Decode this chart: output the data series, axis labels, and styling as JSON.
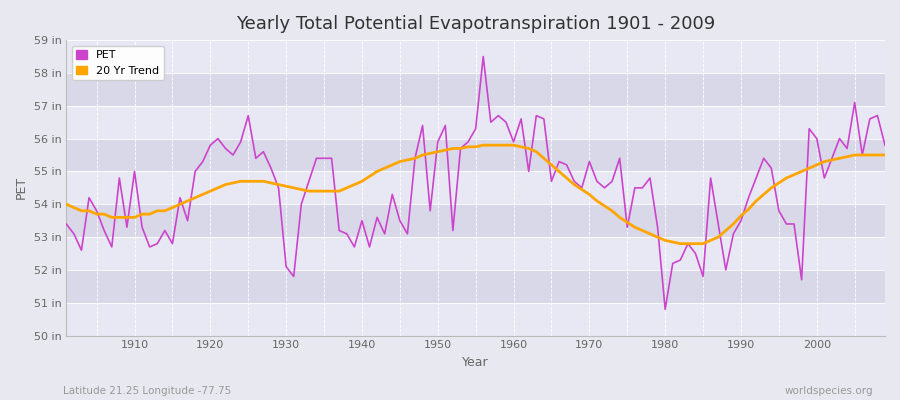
{
  "title": "Yearly Total Potential Evapotranspiration 1901 - 2009",
  "xlabel": "Year",
  "ylabel": "PET",
  "subtitle_left": "Latitude 21.25 Longitude -77.75",
  "subtitle_right": "worldspecies.org",
  "ylim": [
    50,
    59
  ],
  "yticks": [
    50,
    51,
    52,
    53,
    54,
    55,
    56,
    57,
    58,
    59
  ],
  "ytick_labels": [
    "50 in",
    "51 in",
    "52 in",
    "53 in",
    "54 in",
    "55 in",
    "56 in",
    "57 in",
    "58 in",
    "59 in"
  ],
  "xlim": [
    1901,
    2009
  ],
  "pet_color": "#CC44CC",
  "trend_color": "#FFA500",
  "bg_color": "#E8E8F0",
  "plot_bg_color": "#E0E0EC",
  "band_color_light": "#E8E8F4",
  "band_color_dark": "#D8D8E8",
  "grid_color": "#FFFFFF",
  "legend_label_pet": "PET",
  "legend_label_trend": "20 Yr Trend",
  "years": [
    1901,
    1902,
    1903,
    1904,
    1905,
    1906,
    1907,
    1908,
    1909,
    1910,
    1911,
    1912,
    1913,
    1914,
    1915,
    1916,
    1917,
    1918,
    1919,
    1920,
    1921,
    1922,
    1923,
    1924,
    1925,
    1926,
    1927,
    1928,
    1929,
    1930,
    1931,
    1932,
    1933,
    1934,
    1935,
    1936,
    1937,
    1938,
    1939,
    1940,
    1941,
    1942,
    1943,
    1944,
    1945,
    1946,
    1947,
    1948,
    1949,
    1950,
    1951,
    1952,
    1953,
    1954,
    1955,
    1956,
    1957,
    1958,
    1959,
    1960,
    1961,
    1962,
    1963,
    1964,
    1965,
    1966,
    1967,
    1968,
    1969,
    1970,
    1971,
    1972,
    1973,
    1974,
    1975,
    1976,
    1977,
    1978,
    1979,
    1980,
    1981,
    1982,
    1983,
    1984,
    1985,
    1986,
    1987,
    1988,
    1989,
    1990,
    1991,
    1992,
    1993,
    1994,
    1995,
    1996,
    1997,
    1998,
    1999,
    2000,
    2001,
    2002,
    2003,
    2004,
    2005,
    2006,
    2007,
    2008,
    2009
  ],
  "pet_values": [
    53.4,
    53.1,
    52.6,
    54.2,
    53.8,
    53.2,
    52.7,
    54.8,
    53.3,
    55.0,
    53.3,
    52.7,
    52.8,
    53.2,
    52.8,
    54.2,
    53.5,
    55.0,
    55.3,
    55.8,
    56.0,
    55.7,
    55.5,
    55.9,
    56.7,
    55.4,
    55.6,
    55.1,
    54.5,
    52.1,
    51.8,
    54.0,
    54.7,
    55.4,
    55.4,
    55.4,
    53.2,
    53.1,
    52.7,
    53.5,
    52.7,
    53.6,
    53.1,
    54.3,
    53.5,
    53.1,
    55.4,
    56.4,
    53.8,
    55.9,
    56.4,
    53.2,
    55.7,
    55.9,
    56.3,
    58.5,
    56.5,
    56.7,
    56.5,
    55.9,
    56.6,
    55.0,
    56.7,
    56.6,
    54.7,
    55.3,
    55.2,
    54.7,
    54.5,
    55.3,
    54.7,
    54.5,
    54.7,
    55.4,
    53.3,
    54.5,
    54.5,
    54.8,
    53.3,
    50.8,
    52.2,
    52.3,
    52.8,
    52.5,
    51.8,
    54.8,
    53.4,
    52.0,
    53.1,
    53.5,
    54.2,
    54.8,
    55.4,
    55.1,
    53.8,
    53.4,
    53.4,
    51.7,
    56.3,
    56.0,
    54.8,
    55.4,
    56.0,
    55.7,
    57.1,
    55.5,
    56.6,
    56.7,
    55.8
  ],
  "trend_values": [
    54.0,
    53.9,
    53.8,
    53.8,
    53.7,
    53.7,
    53.6,
    53.6,
    53.6,
    53.6,
    53.7,
    53.7,
    53.8,
    53.8,
    53.9,
    54.0,
    54.1,
    54.2,
    54.3,
    54.4,
    54.5,
    54.6,
    54.65,
    54.7,
    54.7,
    54.7,
    54.7,
    54.65,
    54.6,
    54.55,
    54.5,
    54.45,
    54.4,
    54.4,
    54.4,
    54.4,
    54.4,
    54.5,
    54.6,
    54.7,
    54.85,
    55.0,
    55.1,
    55.2,
    55.3,
    55.35,
    55.4,
    55.5,
    55.55,
    55.6,
    55.65,
    55.7,
    55.7,
    55.75,
    55.75,
    55.8,
    55.8,
    55.8,
    55.8,
    55.8,
    55.75,
    55.7,
    55.6,
    55.4,
    55.2,
    55.0,
    54.8,
    54.6,
    54.45,
    54.3,
    54.1,
    53.95,
    53.8,
    53.6,
    53.45,
    53.3,
    53.2,
    53.1,
    53.0,
    52.9,
    52.85,
    52.8,
    52.8,
    52.8,
    52.8,
    52.9,
    53.0,
    53.2,
    53.4,
    53.65,
    53.85,
    54.1,
    54.3,
    54.5,
    54.65,
    54.8,
    54.9,
    55.0,
    55.1,
    55.2,
    55.3,
    55.35,
    55.4,
    55.45,
    55.5,
    55.5,
    55.5,
    55.5,
    55.5
  ]
}
